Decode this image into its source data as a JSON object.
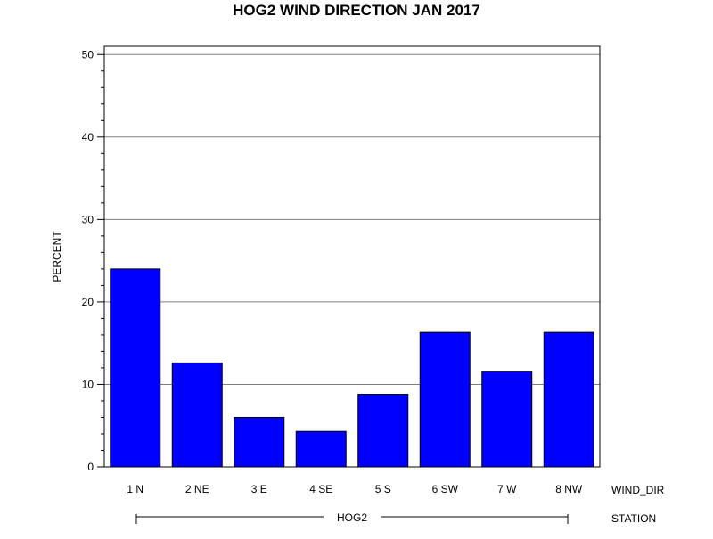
{
  "chart_data": {
    "type": "bar",
    "title": "HOG2 WIND DIRECTION JAN 2017",
    "ylabel": "PERCENT",
    "xlabel": "WIND_DIR",
    "group_label": "STATION",
    "group_value": "HOG2",
    "categories": [
      "1 N",
      "2 NE",
      "3 E",
      "4 SE",
      "5 S",
      "6 SW",
      "7 W",
      "8 NW"
    ],
    "values": [
      24.0,
      12.6,
      6.0,
      4.3,
      8.8,
      16.3,
      11.6,
      16.3
    ],
    "ylim": [
      0,
      51
    ],
    "yticks": [
      "0",
      "10",
      "20",
      "30",
      "40",
      "50"
    ],
    "grid": true,
    "bar_color": "#0000ff"
  }
}
